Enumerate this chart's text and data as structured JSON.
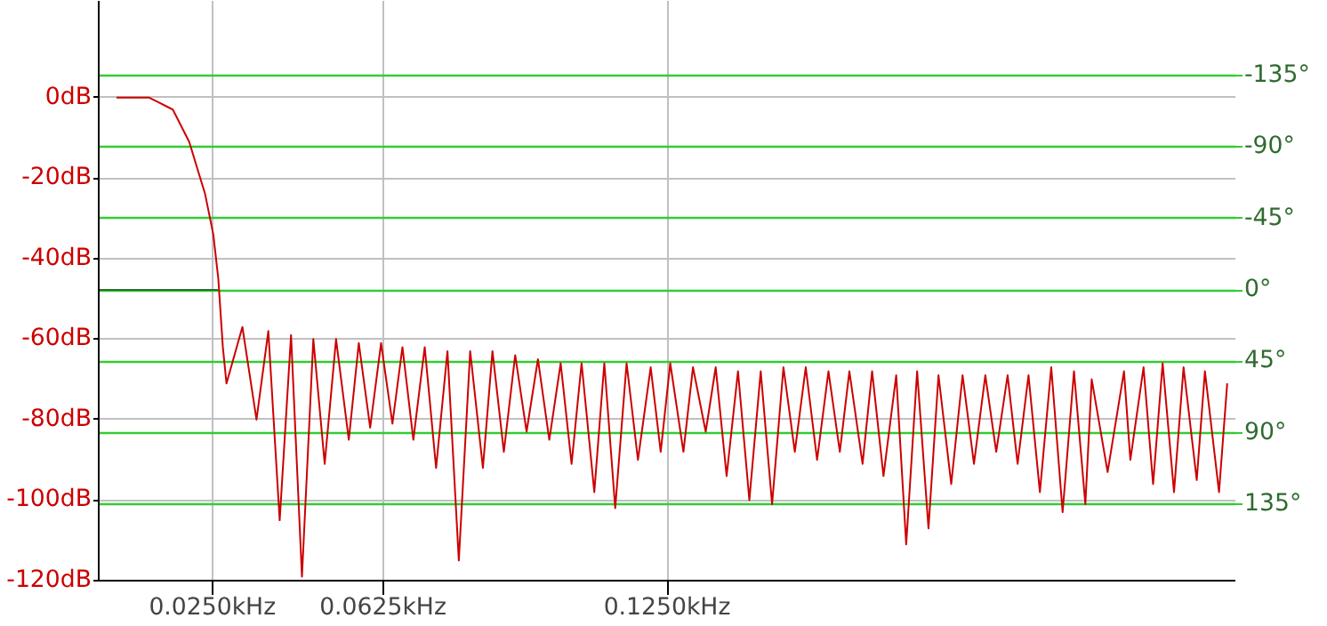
{
  "chart_data": {
    "type": "line",
    "xlim": [
      0,
      0.25
    ],
    "ylim": [
      -120,
      24
    ],
    "y2lim": [
      183,
      -182
    ],
    "xticks": [
      {
        "value": 0.025,
        "label": "0.0250kHz"
      },
      {
        "value": 0.0625,
        "label": "0.0625kHz"
      },
      {
        "value": 0.125,
        "label": "0.1250kHz"
      }
    ],
    "yticks": [
      {
        "value": 0,
        "label": "0dB"
      },
      {
        "value": -20,
        "label": "-20dB"
      },
      {
        "value": -40,
        "label": "-40dB"
      },
      {
        "value": -60,
        "label": "-60dB"
      },
      {
        "value": -80,
        "label": "-80dB"
      },
      {
        "value": -100,
        "label": "-100dB"
      },
      {
        "value": -120,
        "label": "-120dB"
      }
    ],
    "y2ticks": [
      {
        "value": -135,
        "label": "-135°"
      },
      {
        "value": -90,
        "label": "-90°"
      },
      {
        "value": -45,
        "label": "-45°"
      },
      {
        "value": 0,
        "label": "0°"
      },
      {
        "value": 45,
        "label": "45°"
      },
      {
        "value": 90,
        "label": "90°"
      },
      {
        "value": 135,
        "label": "135°"
      }
    ],
    "grid": true,
    "marker": "none",
    "line_style": "solid",
    "series": [
      {
        "color": "#cc0000",
        "x": [
          0.0039,
          0.011,
          0.0128,
          0.0163,
          0.0199,
          0.0234,
          0.0252,
          0.0263,
          0.0273,
          0.0281,
          0.0316,
          0.0347,
          0.0373,
          0.0398,
          0.0423,
          0.0447,
          0.0472,
          0.0497,
          0.0522,
          0.055,
          0.0572,
          0.0597,
          0.0621,
          0.0646,
          0.0668,
          0.0692,
          0.0717,
          0.0742,
          0.0767,
          0.0792,
          0.0817,
          0.0845,
          0.0866,
          0.0891,
          0.0916,
          0.0941,
          0.0966,
          0.0991,
          0.1016,
          0.104,
          0.1062,
          0.109,
          0.1112,
          0.1136,
          0.1161,
          0.1186,
          0.1214,
          0.1236,
          0.1257,
          0.1286,
          0.1307,
          0.1335,
          0.1357,
          0.1381,
          0.1406,
          0.1431,
          0.1456,
          0.1481,
          0.1506,
          0.1531,
          0.1555,
          0.158,
          0.1605,
          0.163,
          0.1651,
          0.168,
          0.1701,
          0.1726,
          0.1754,
          0.1776,
          0.18,
          0.1825,
          0.1847,
          0.1875,
          0.19,
          0.1925,
          0.195,
          0.1974,
          0.1999,
          0.2021,
          0.2045,
          0.207,
          0.2095,
          0.212,
          0.2145,
          0.217,
          0.2184,
          0.2219,
          0.2255,
          0.2269,
          0.2298,
          0.2319,
          0.234,
          0.2365,
          0.2386,
          0.2415,
          0.2433,
          0.2464,
          0.2482
        ],
        "values": [
          0,
          0,
          -1,
          -3,
          -11,
          -24,
          -34,
          -45,
          -62,
          -71,
          -57,
          -80,
          -58,
          -105,
          -59,
          -119,
          -60,
          -91,
          -60,
          -85,
          -61,
          -82,
          -61,
          -81,
          -62,
          -85,
          -62,
          -92,
          -63,
          -115,
          -63,
          -92,
          -63,
          -88,
          -64,
          -83,
          -65,
          -85,
          -66,
          -91,
          -66,
          -98,
          -66,
          -102,
          -66,
          -90,
          -67,
          -88,
          -66,
          -88,
          -67,
          -83,
          -67,
          -94,
          -68,
          -100,
          -68,
          -101,
          -67,
          -88,
          -67,
          -90,
          -68,
          -88,
          -68,
          -91,
          -68,
          -94,
          -69,
          -111,
          -68,
          -107,
          -69,
          -96,
          -69,
          -91,
          -69,
          -88,
          -69,
          -91,
          -69,
          -98,
          -67,
          -103,
          -68,
          -101,
          -70,
          -93,
          -68,
          -90,
          -67,
          -96,
          -66,
          -98,
          -67,
          -95,
          -68,
          -98,
          -71
        ]
      },
      {
        "color": "#2f6b2f",
        "axis": "y2",
        "x": [
          0,
          0.0263
        ],
        "values": [
          0,
          0
        ]
      }
    ]
  }
}
